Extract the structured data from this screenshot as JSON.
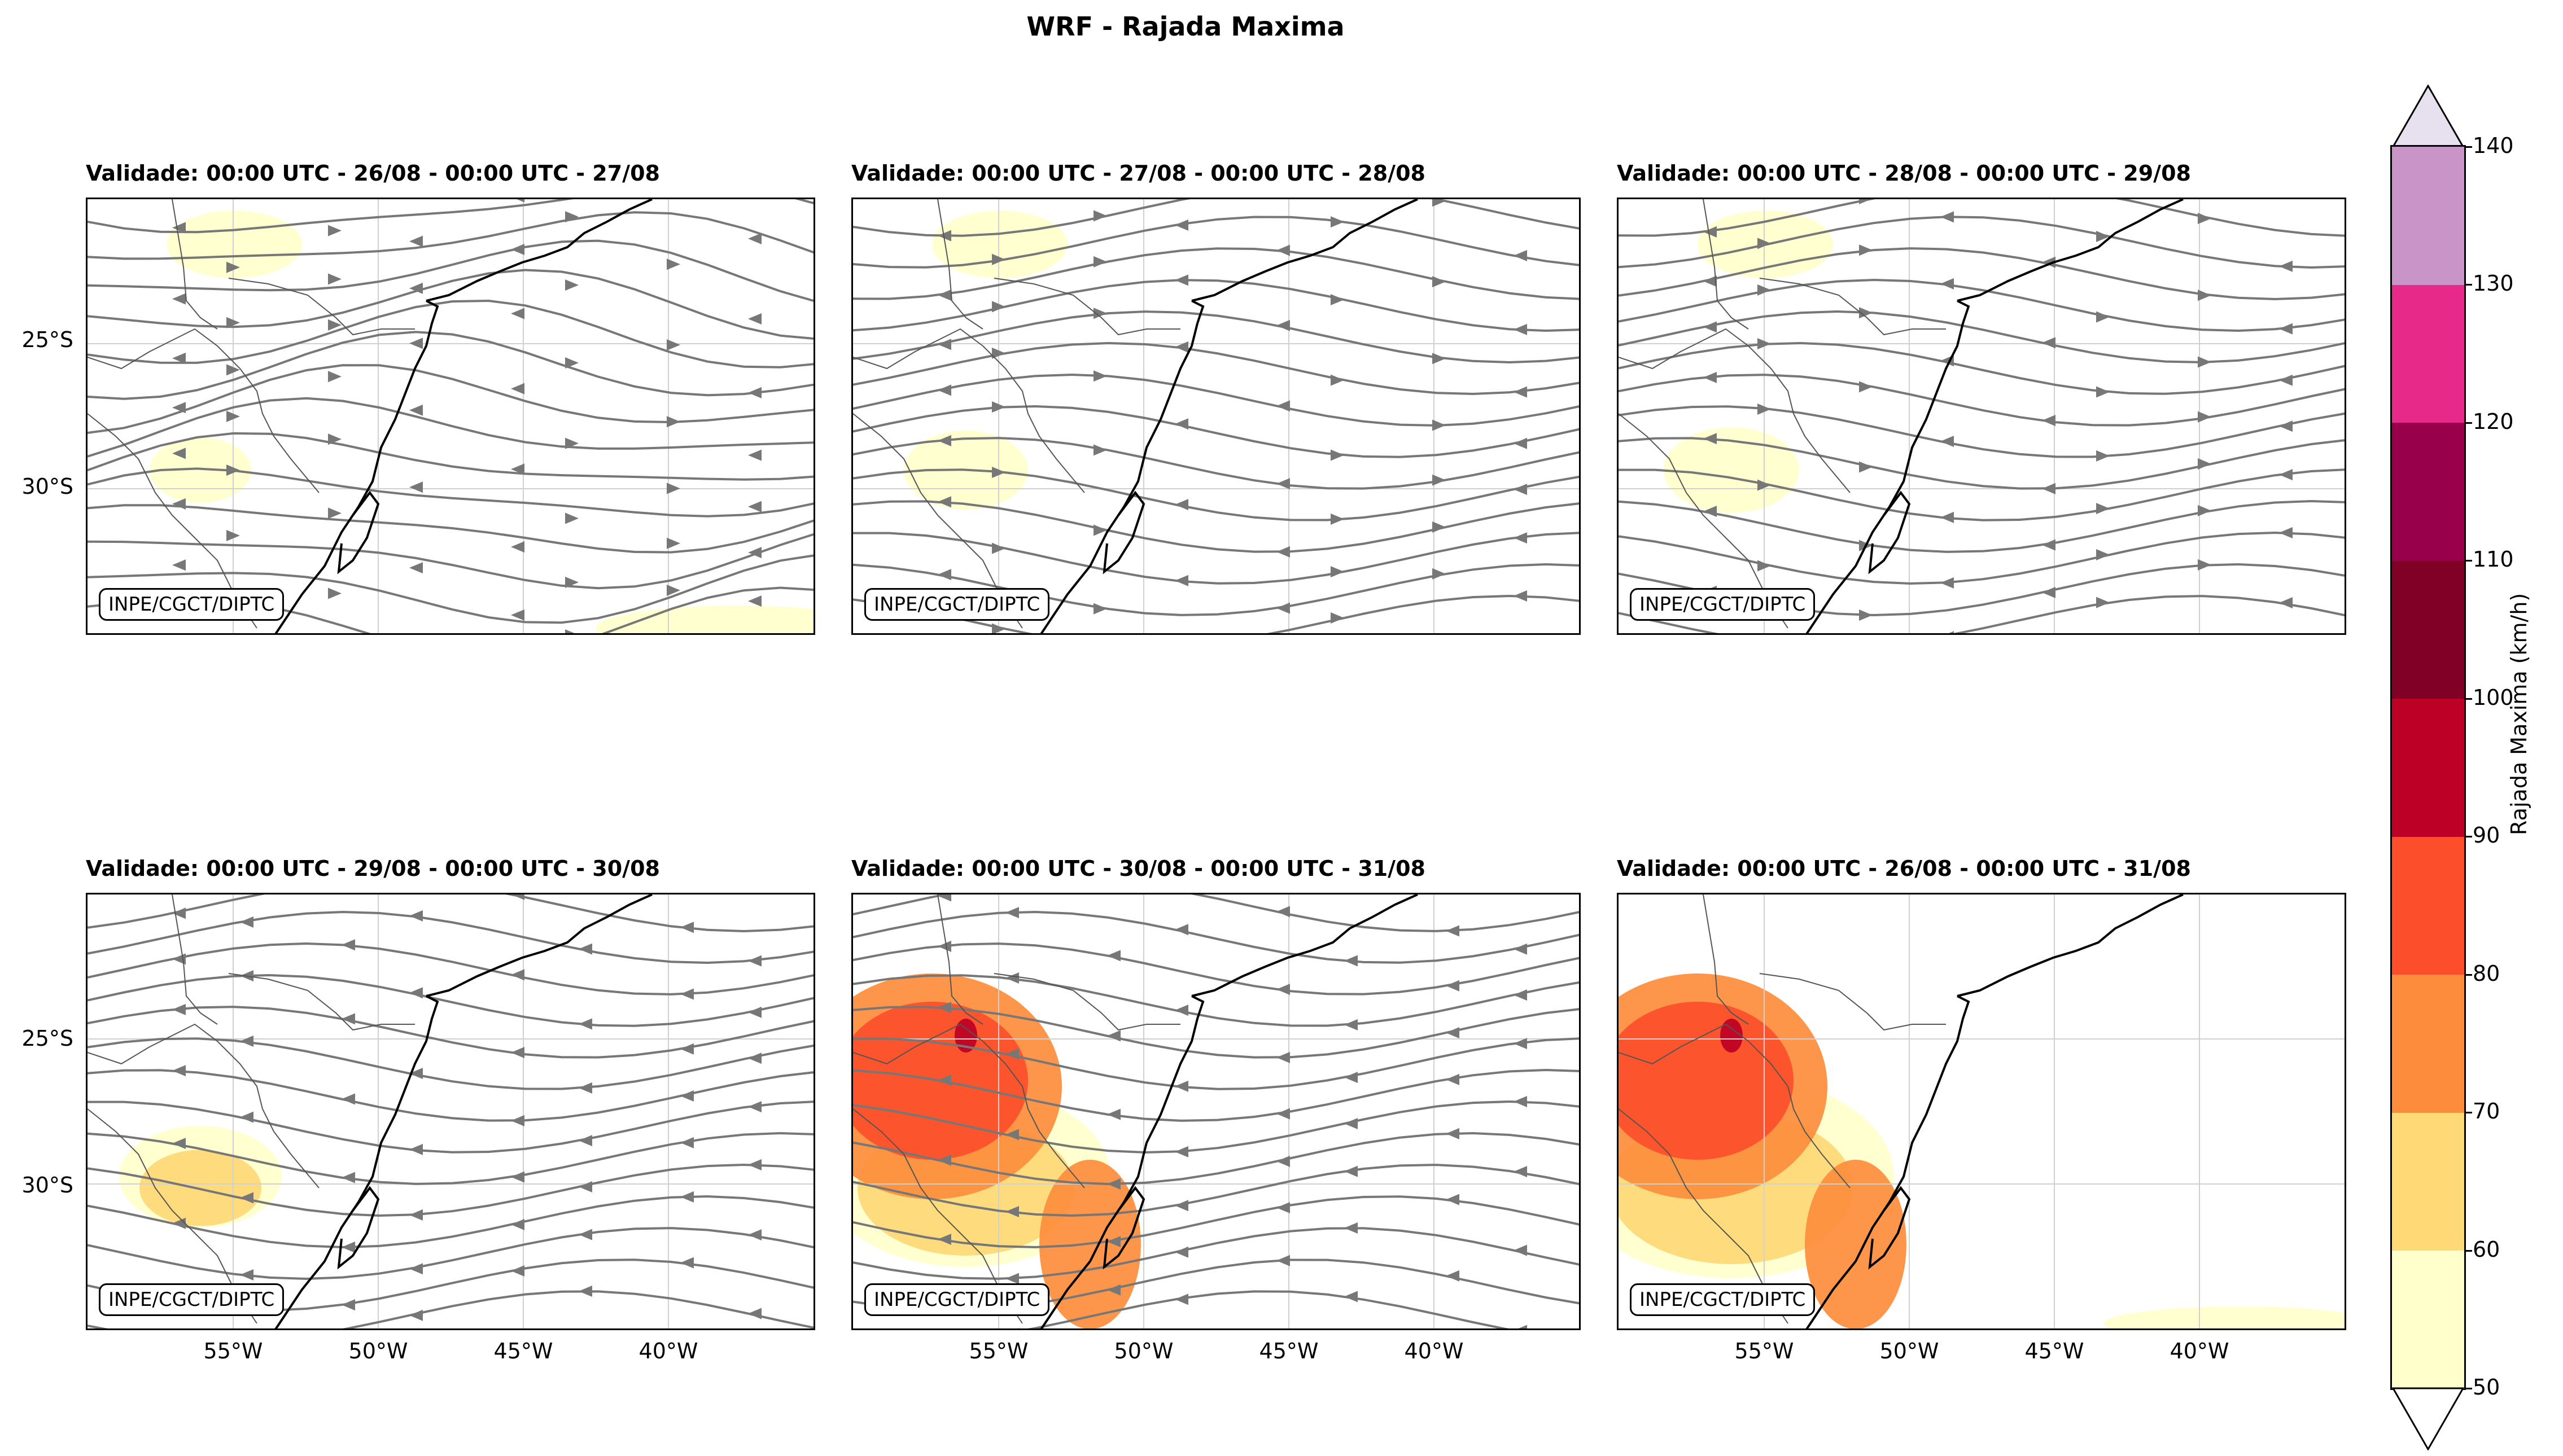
{
  "title": "WRF - Rajada Maxima",
  "credit": "INPE/CGCT/DIPTC",
  "panels": [
    {
      "title": "Validade: 00:00 UTC - 26/08 - 00:00 UTC - 27/08",
      "gust_intensity": 0.15
    },
    {
      "title": "Validade: 00:00 UTC - 27/08 - 00:00 UTC - 28/08",
      "gust_intensity": 0.25
    },
    {
      "title": "Validade: 00:00 UTC - 28/08 - 00:00 UTC - 29/08",
      "gust_intensity": 0.3
    },
    {
      "title": "Validade: 00:00 UTC - 29/08 - 00:00 UTC - 30/08",
      "gust_intensity": 0.45
    },
    {
      "title": "Validade: 00:00 UTC - 30/08 - 00:00 UTC - 31/08",
      "gust_intensity": 0.8
    },
    {
      "title": "Validade: 00:00 UTC - 26/08 - 00:00 UTC - 31/08",
      "gust_intensity": 0.9
    }
  ],
  "lat_labels": [
    "25°S",
    "30°S"
  ],
  "lon_labels": [
    "55°W",
    "50°W",
    "45°W",
    "40°W"
  ],
  "colorbar": {
    "label": "Rajada Maxima (km/h)",
    "ticks": [
      "50",
      "60",
      "70",
      "80",
      "90",
      "100",
      "110",
      "120",
      "130",
      "140"
    ],
    "colors": [
      "#ffffcc",
      "#fed976",
      "#fd8d3c",
      "#fc4e2a",
      "#bd0026",
      "#800026",
      "#99004c",
      "#e7298a",
      "#c994c7"
    ],
    "over_color": "#e7e1ef"
  }
}
